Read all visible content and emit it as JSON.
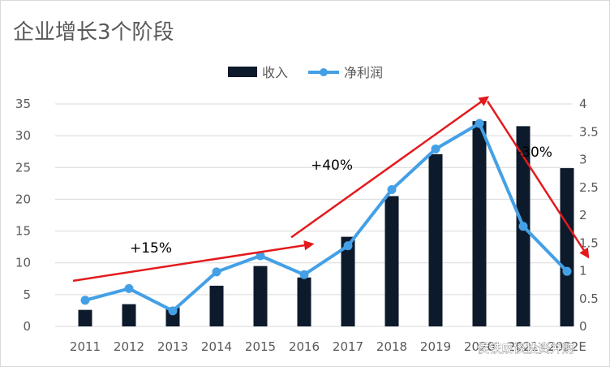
{
  "chart_data": {
    "type": "bar",
    "title": "企业增长3个阶段",
    "categories": [
      "2011",
      "2012",
      "2013",
      "2014",
      "2015",
      "2016",
      "2017",
      "2018",
      "2019",
      "2020",
      "2021",
      "2022E"
    ],
    "series": [
      {
        "name": "收入",
        "type": "bar",
        "axis": "left",
        "color": "#0c1a2b",
        "values": [
          2.6,
          3.5,
          3.0,
          6.4,
          9.5,
          7.7,
          14.1,
          20.5,
          27.1,
          32.3,
          31.5,
          24.9
        ]
      },
      {
        "name": "净利润",
        "type": "line",
        "axis": "right",
        "color": "#44a0e6",
        "values": [
          0.47,
          0.68,
          0.28,
          0.98,
          1.27,
          0.93,
          1.45,
          2.46,
          3.19,
          3.65,
          1.8,
          0.99
        ]
      }
    ],
    "y_left": {
      "min": 0,
      "max": 35,
      "ticks": [
        "0",
        "5",
        "10",
        "15",
        "20",
        "25",
        "30",
        "35"
      ]
    },
    "y_right": {
      "min": 0,
      "max": 4,
      "ticks": [
        "0",
        "0.5",
        "1",
        "1.5",
        "2",
        "2.5",
        "3",
        "3.5",
        "4"
      ]
    },
    "grid": true,
    "legend_position": "top",
    "annotations": [
      {
        "text": "+15%",
        "arrow_from": [
          "2011",
          0.82
        ],
        "arrow_to": [
          "2016",
          1.48
        ]
      },
      {
        "text": "+40%",
        "arrow_from": [
          "2016",
          1.6
        ],
        "arrow_to": [
          "2020",
          4.12
        ]
      },
      {
        "text": "-30%",
        "arrow_from": [
          "2020",
          4.05
        ],
        "arrow_to": [
          "2022E",
          1.25
        ]
      }
    ],
    "annotation_color": "#e31a1c"
  },
  "watermark": "侯铁成谈投资并购"
}
